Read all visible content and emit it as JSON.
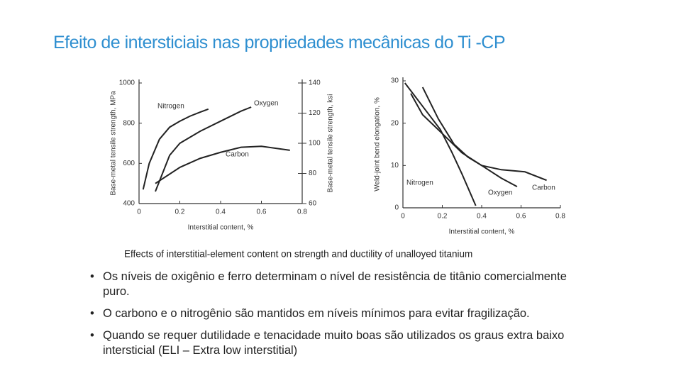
{
  "title": "Efeito de intersticiais nas propriedades mecânicas do Ti -CP",
  "chart_data": [
    {
      "type": "line",
      "xlabel": "Interstitial content, %",
      "ylabel": "Base-metal tensile strength, MPa",
      "y2label": "Base-metal tensile strength, ksi",
      "xlim": [
        0,
        0.8
      ],
      "xticks": [
        0,
        0.2,
        0.4,
        0.6,
        0.8
      ],
      "ylim": [
        400,
        1000
      ],
      "yticks": [
        400,
        600,
        800,
        1000
      ],
      "y2lim": [
        60,
        140
      ],
      "y2ticks": [
        60,
        80,
        100,
        120,
        140
      ],
      "grid": false,
      "series": [
        {
          "name": "Nitrogen",
          "color": "#222222",
          "x": [
            0.02,
            0.05,
            0.1,
            0.15,
            0.2,
            0.25,
            0.3,
            0.34
          ],
          "values": [
            470,
            600,
            720,
            780,
            810,
            835,
            855,
            870
          ]
        },
        {
          "name": "Oxygen",
          "color": "#222222",
          "x": [
            0.08,
            0.15,
            0.2,
            0.3,
            0.4,
            0.5,
            0.55
          ],
          "values": [
            460,
            640,
            700,
            760,
            810,
            860,
            880
          ]
        },
        {
          "name": "Carbon",
          "color": "#222222",
          "x": [
            0.08,
            0.2,
            0.3,
            0.4,
            0.5,
            0.6,
            0.74
          ],
          "values": [
            500,
            580,
            625,
            655,
            680,
            685,
            665
          ]
        }
      ]
    },
    {
      "type": "line",
      "xlabel": "Interstitial content, %",
      "ylabel": "Weld-joint bend elongation, %",
      "xlim": [
        0,
        0.8
      ],
      "xticks": [
        0,
        0.2,
        0.4,
        0.6,
        0.8
      ],
      "ylim": [
        0,
        30
      ],
      "yticks": [
        0,
        10,
        20,
        30
      ],
      "grid": false,
      "series": [
        {
          "name": "Nitrogen",
          "color": "#222222",
          "x": [
            0.01,
            0.1,
            0.19,
            0.25,
            0.3,
            0.37
          ],
          "values": [
            29.5,
            24,
            18.5,
            13,
            8,
            0.5
          ]
        },
        {
          "name": "Oxygen",
          "color": "#222222",
          "x": [
            0.1,
            0.18,
            0.26,
            0.33,
            0.4,
            0.5,
            0.58
          ],
          "values": [
            28.5,
            21,
            15,
            12,
            10,
            7,
            5
          ]
        },
        {
          "name": "Carbon",
          "color": "#222222",
          "x": [
            0.04,
            0.1,
            0.19,
            0.3,
            0.4,
            0.5,
            0.62,
            0.73
          ],
          "values": [
            27,
            22,
            18,
            13,
            10,
            9,
            8.5,
            6.5
          ]
        }
      ]
    }
  ],
  "caption": "Effects of interstitial-element content on strength and ductility of unalloyed titanium",
  "bullets": [
    "Os níveis de oxigênio e ferro determinam o nível de resistência de titânio comercialmente puro.",
    "O carbono e o nitrogênio são mantidos em níveis mínimos para evitar fragilização.",
    "Quando se requer dutilidade e tenacidade muito boas são utilizados os graus extra baixo intersticial (ELI – Extra low interstitial)"
  ]
}
